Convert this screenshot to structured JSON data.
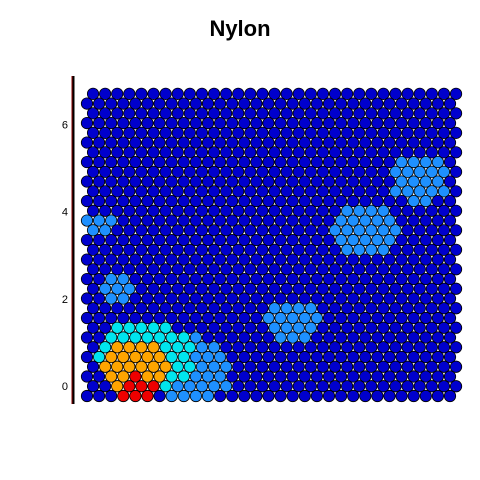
{
  "chart_data": {
    "type": "heatmap",
    "subtype": "som-hexagonal-map",
    "title": "Nylon",
    "grid": {
      "cols": 31,
      "rows": 32,
      "x_range": [
        0,
        30
      ],
      "y_range": [
        0,
        6.93
      ]
    },
    "yticks": [
      "0",
      "2",
      "4",
      "6"
    ],
    "ylim": [
      -0.3,
      7.2
    ],
    "grid_lines": false,
    "palette_low_to_high": [
      "#0000cd",
      "#1e90ff",
      "#00e5ee",
      "#ffa500",
      "#ee0000"
    ],
    "default_level": 0,
    "hotspots": [
      {
        "x": 4.2,
        "y": 0.1,
        "r": 1.6,
        "level": 4
      },
      {
        "x": 4.0,
        "y": 0.6,
        "r": 3.0,
        "level": 3
      },
      {
        "x": 4.8,
        "y": 0.9,
        "r": 4.0,
        "level": 2
      },
      {
        "x": 8.5,
        "y": 0.6,
        "r": 3.5,
        "level": 1
      },
      {
        "x": 2.3,
        "y": 2.5,
        "r": 1.5,
        "level": 1
      },
      {
        "x": 1.0,
        "y": 4.0,
        "r": 1.2,
        "level": 1
      },
      {
        "x": 17.0,
        "y": 1.7,
        "r": 2.2,
        "level": 1
      },
      {
        "x": 23.0,
        "y": 3.8,
        "r": 3.0,
        "level": 1
      },
      {
        "x": 27.5,
        "y": 5.0,
        "r": 2.5,
        "level": 1
      }
    ]
  }
}
